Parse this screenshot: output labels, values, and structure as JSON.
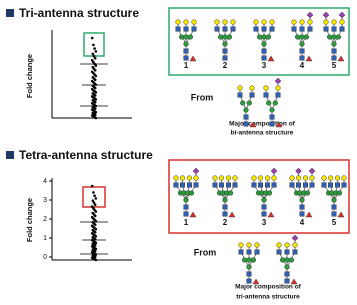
{
  "panels": [
    {
      "title": "Tri-antenna structure",
      "y_label": "Fold change",
      "labels": [
        "1",
        "2",
        "3",
        "4",
        "5"
      ],
      "from": "From",
      "caption": [
        "Major composition of",
        "bi-antenna structure"
      ]
    },
    {
      "title": "Tetra-antenna structure",
      "y_label": "Fold change",
      "yticks": [
        "0",
        "1",
        "2",
        "3",
        "4"
      ],
      "labels": [
        "1",
        "2",
        "3",
        "4",
        "5"
      ],
      "from": "From",
      "caption": [
        "Major composition of",
        "tri-antenna structure"
      ]
    }
  ]
}
